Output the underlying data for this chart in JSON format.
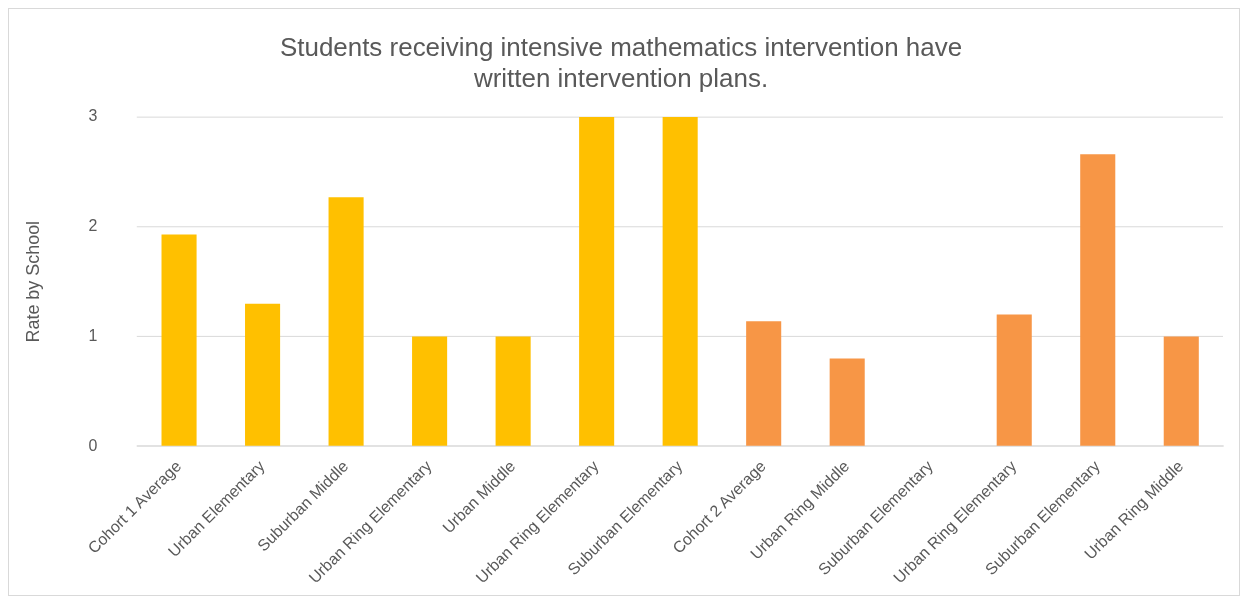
{
  "chart_data": {
    "type": "bar",
    "title": [
      "Students receiving intensive mathematics intervention have",
      "written intervention plans."
    ],
    "ylabel": "Rate by School",
    "categories": [
      "Cohort 1 Average",
      "Urban Elementary",
      "Suburban Middle",
      "Urban Ring Elementary",
      "Urban Middle",
      "Urban Ring Elementary",
      "Suburban Elementary",
      "Cohort 2 Average",
      "Urban Ring Middle",
      "Suburban Elementary",
      "Urban Ring Elementary",
      "Suburban Elementary",
      "Urban Ring Middle"
    ],
    "values": [
      1.93,
      1.3,
      2.27,
      1.0,
      1.0,
      3.0,
      3.0,
      1.14,
      0.8,
      0,
      1.2,
      2.66,
      1.0
    ],
    "colors": [
      "#ffc000",
      "#ffc000",
      "#ffc000",
      "#ffc000",
      "#ffc000",
      "#ffc000",
      "#ffc000",
      "#f79646",
      "#f79646",
      "#f79646",
      "#f79646",
      "#f79646",
      "#f79646"
    ],
    "ylim": [
      0,
      3
    ],
    "yticks": [
      0,
      1,
      2,
      3
    ],
    "grid": "y",
    "legend": false
  }
}
